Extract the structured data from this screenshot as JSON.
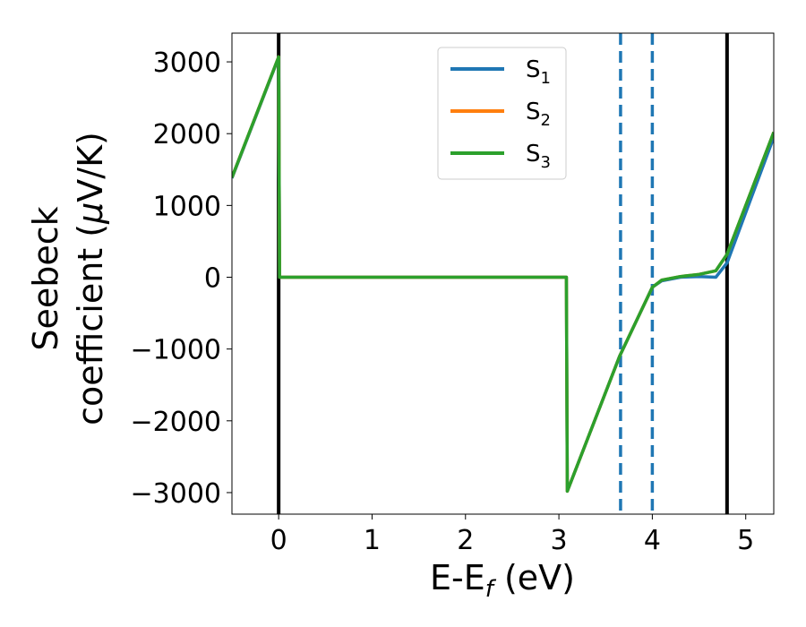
{
  "chart_data": {
    "type": "line",
    "xlabel": "E-E",
    "xlabel_sub": "f",
    "xlabel_unit": " (eV)",
    "ylabel_line1": "Seebeck",
    "ylabel_line2": "coefficient  (",
    "ylabel_mu": "μ",
    "ylabel_unit": "V/K)",
    "xlim": [
      -0.5,
      5.3
    ],
    "ylim": [
      -3300,
      3400
    ],
    "x_ticks": [
      0,
      1,
      2,
      3,
      4,
      5
    ],
    "x_tick_labels": [
      "0",
      "1",
      "2",
      "3",
      "4",
      "5"
    ],
    "y_ticks": [
      -3000,
      -2000,
      -1000,
      0,
      1000,
      2000,
      3000
    ],
    "y_tick_labels": [
      "−3000",
      "−2000",
      "−1000",
      "0",
      "1000",
      "2000",
      "3000"
    ],
    "legend_position": "top-center",
    "series": [
      {
        "name": "S",
        "sub": "1",
        "color": "#1f77b4",
        "x": [
          -0.5,
          0.0,
          0.01,
          3.08,
          3.09,
          3.65,
          4.0,
          4.1,
          4.3,
          4.5,
          4.68,
          4.8,
          5.3
        ],
        "y": [
          1380,
          3060,
          0,
          0,
          -2980,
          -1100,
          -140,
          -50,
          0,
          10,
          0,
          200,
          1950
        ]
      },
      {
        "name": "S",
        "sub": "2",
        "color": "#ff7f0e",
        "x": [
          -0.5,
          0.0,
          0.01,
          3.08,
          3.09,
          3.65,
          4.0,
          4.1,
          4.3,
          4.5,
          4.68,
          4.8,
          5.3
        ],
        "y": [
          1390,
          3070,
          0,
          0,
          -2980,
          -1100,
          -140,
          -40,
          10,
          40,
          90,
          320,
          2020
        ]
      },
      {
        "name": "S",
        "sub": "3",
        "color": "#2ca02c",
        "x": [
          -0.5,
          0.0,
          0.01,
          3.08,
          3.09,
          3.65,
          4.0,
          4.1,
          4.3,
          4.5,
          4.68,
          4.8,
          5.3
        ],
        "y": [
          1390,
          3070,
          0,
          0,
          -2980,
          -1100,
          -140,
          -40,
          10,
          40,
          90,
          320,
          2020
        ]
      }
    ],
    "vertical_lines": [
      {
        "x": 0.0,
        "style": "solid",
        "color": "#000000"
      },
      {
        "x": 4.8,
        "style": "solid",
        "color": "#000000"
      },
      {
        "x": 3.66,
        "style": "dashed",
        "color": "#1f77b4"
      },
      {
        "x": 4.0,
        "style": "dashed",
        "color": "#1f77b4"
      }
    ]
  }
}
